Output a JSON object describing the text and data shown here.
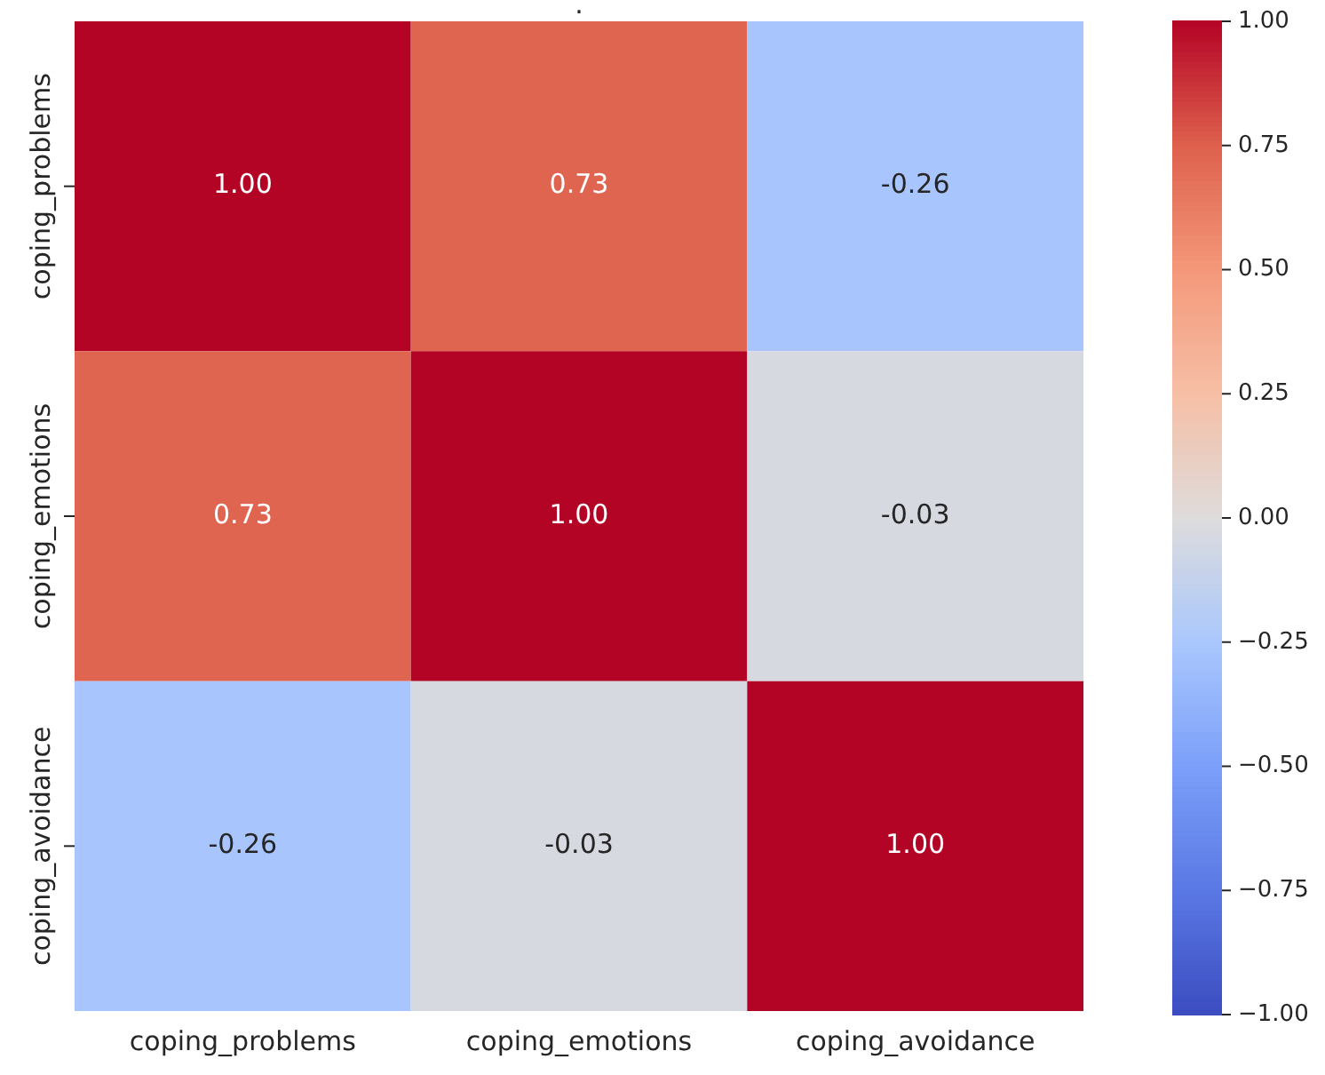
{
  "chart_data": {
    "type": "heatmap",
    "title": ".",
    "categories": [
      "coping_problems",
      "coping_emotions",
      "coping_avoidance"
    ],
    "y_categories": [
      "coping_problems",
      "coping_emotions",
      "coping_avoidance"
    ],
    "cells": [
      [
        1.0,
        0.73,
        -0.26
      ],
      [
        0.73,
        1.0,
        -0.03
      ],
      [
        -0.26,
        -0.03,
        1.0
      ]
    ],
    "cell_labels": [
      [
        "1.00",
        "0.73",
        "-0.26"
      ],
      [
        "0.73",
        "1.00",
        "-0.03"
      ],
      [
        "-0.26",
        "-0.03",
        "1.00"
      ]
    ],
    "clim": [
      -1,
      1
    ],
    "cticks": [
      {
        "value": 1,
        "label": "1.00"
      },
      {
        "value": 0.75,
        "label": "0.75"
      },
      {
        "value": 0.5,
        "label": "0.50"
      },
      {
        "value": 0.25,
        "label": "0.25"
      },
      {
        "value": 0,
        "label": "0.00"
      },
      {
        "value": -0.25,
        "label": "−0.25"
      },
      {
        "value": -0.5,
        "label": "−0.50"
      },
      {
        "value": -0.75,
        "label": "−0.75"
      },
      {
        "value": -1,
        "label": "−1.00"
      }
    ]
  }
}
